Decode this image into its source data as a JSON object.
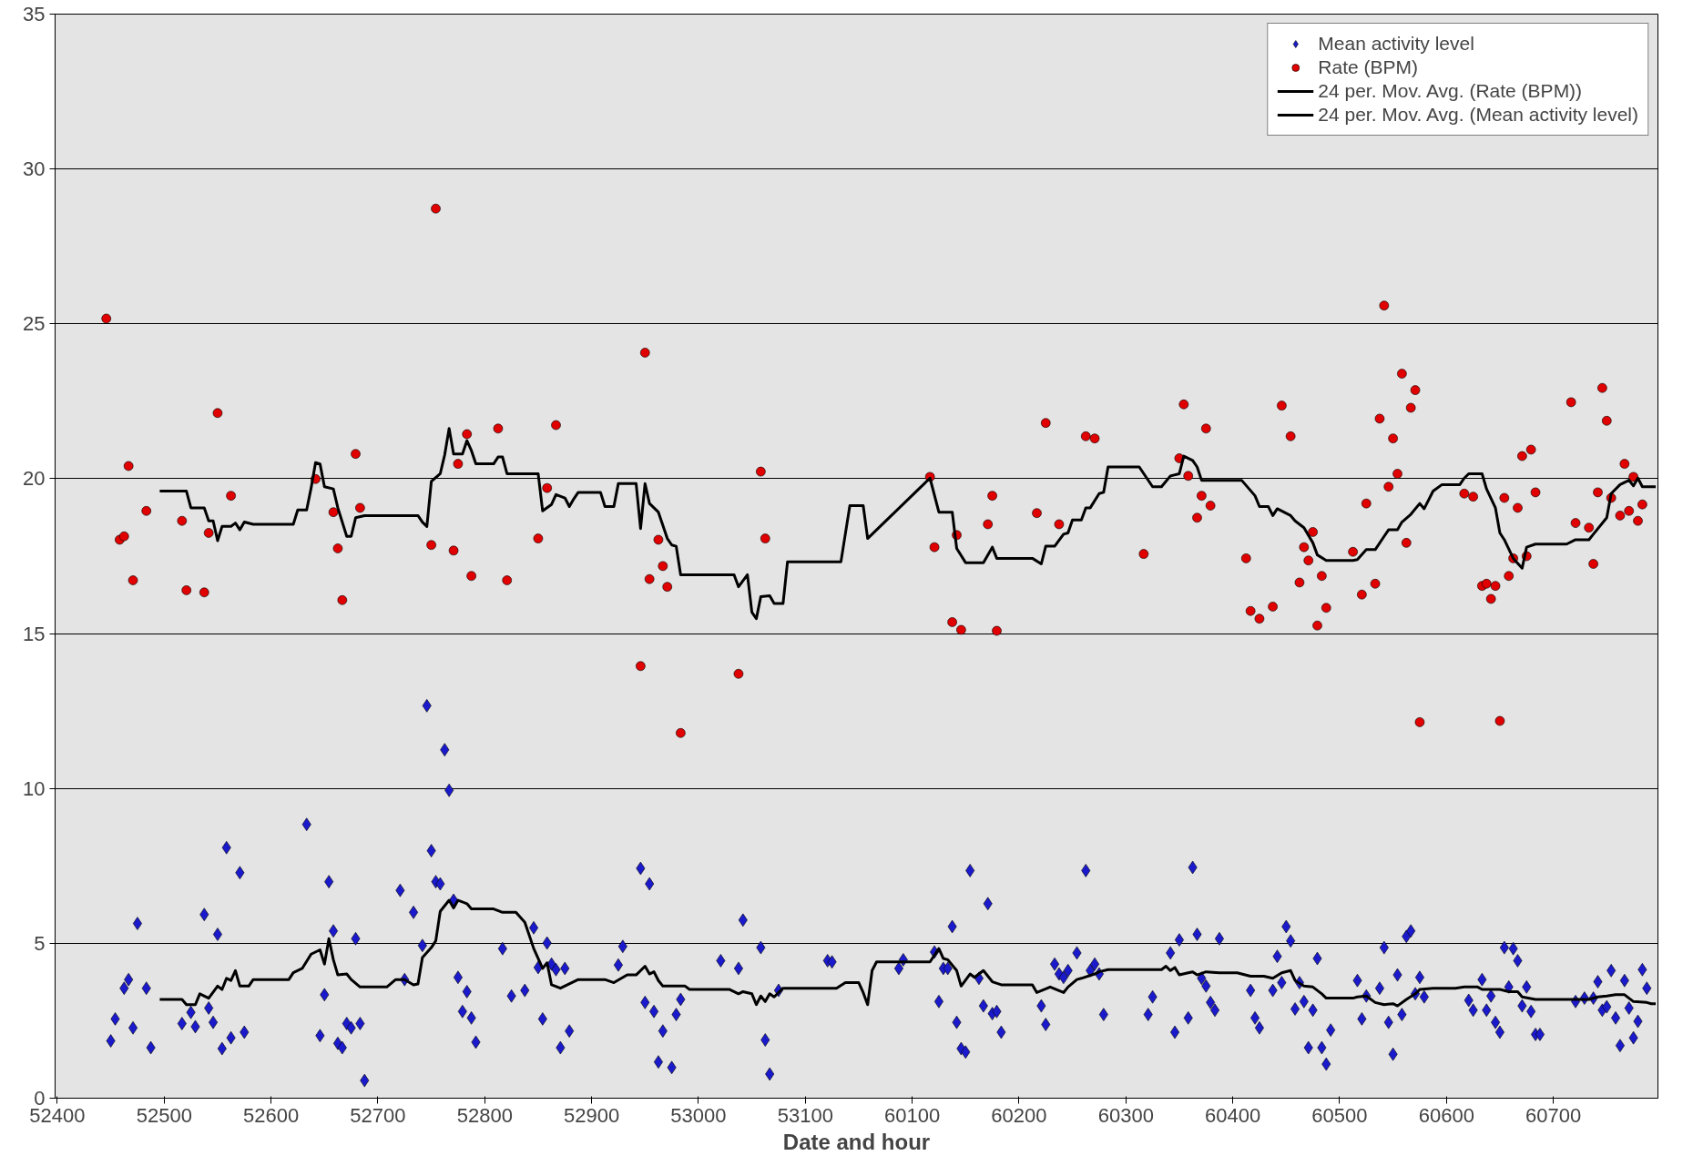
{
  "chart_data": {
    "type": "scatter",
    "xlabel": "Date and hour",
    "ylim": [
      0,
      35
    ],
    "yticks": [
      0,
      5,
      10,
      15,
      20,
      25,
      30,
      35
    ],
    "grid": "y",
    "legend": "top right",
    "categories": [
      "52400",
      null,
      null,
      null,
      null,
      null,
      null,
      null,
      null,
      null,
      null,
      null,
      null,
      null,
      null,
      null,
      null,
      null,
      null,
      null,
      null,
      null,
      null,
      null,
      "52500",
      null,
      null,
      null,
      null,
      null,
      null,
      null,
      null,
      null,
      null,
      null,
      null,
      null,
      null,
      null,
      null,
      null,
      null,
      null,
      null,
      null,
      null,
      null,
      "52600",
      null,
      null,
      null,
      null,
      null,
      null,
      null,
      null,
      null,
      null,
      null,
      null,
      null,
      null,
      null,
      null,
      null,
      null,
      null,
      null,
      null,
      null,
      null,
      "52700",
      null,
      null,
      null,
      null,
      null,
      null,
      null,
      null,
      null,
      null,
      null,
      null,
      null,
      null,
      null,
      null,
      null,
      null,
      null,
      null,
      null,
      null,
      null,
      "52800",
      null,
      null,
      null,
      null,
      null,
      null,
      null,
      null,
      null,
      null,
      null,
      null,
      null,
      null,
      null,
      null,
      null,
      null,
      null,
      null,
      null,
      null,
      null,
      "52900",
      null,
      null,
      null,
      null,
      null,
      null,
      null,
      null,
      null,
      null,
      null,
      null,
      null,
      null,
      null,
      null,
      null,
      null,
      null,
      null,
      null,
      null,
      null,
      "53000",
      null,
      null,
      null,
      null,
      null,
      null,
      null,
      null,
      null,
      null,
      null,
      null,
      null,
      null,
      null,
      null,
      null,
      null,
      null,
      null,
      null,
      null,
      null,
      "53100",
      null,
      null,
      null,
      null,
      null,
      null,
      null,
      null,
      null,
      null,
      null,
      null,
      null,
      null,
      null,
      null,
      null,
      null,
      null,
      null,
      null,
      null,
      null,
      "60100",
      null,
      null,
      null,
      null,
      null,
      null,
      null,
      null,
      null,
      null,
      null,
      null,
      null,
      null,
      null,
      null,
      null,
      null,
      null,
      null,
      null,
      null,
      null,
      "60200",
      null,
      null,
      null,
      null,
      null,
      null,
      null,
      null,
      null,
      null,
      null,
      null,
      null,
      null,
      null,
      null,
      null,
      null,
      null,
      null,
      null,
      null,
      null,
      "60300",
      null,
      null,
      null,
      null,
      null,
      null,
      null,
      null,
      null,
      null,
      null,
      null,
      null,
      null,
      null,
      null,
      null,
      null,
      null,
      null,
      null,
      null,
      null,
      "60400",
      null,
      null,
      null,
      null,
      null,
      null,
      null,
      null,
      null,
      null,
      null,
      null,
      null,
      null,
      null,
      null,
      null,
      null,
      null,
      null,
      null,
      null,
      null,
      "60500",
      null,
      null,
      null,
      null,
      null,
      null,
      null,
      null,
      null,
      null,
      null,
      null,
      null,
      null,
      null,
      null,
      null,
      null,
      null,
      null,
      null,
      null,
      null,
      "60600",
      null,
      null,
      null,
      null,
      null,
      null,
      null,
      null,
      null,
      null,
      null,
      null,
      null,
      null,
      null,
      null,
      null,
      null,
      null,
      null,
      null,
      null,
      null,
      "60700",
      null,
      null,
      null,
      null,
      null,
      null,
      null,
      null,
      null,
      null,
      null,
      null,
      null,
      null,
      null,
      null,
      null,
      null,
      null,
      null,
      null,
      null,
      null
    ],
    "series": [
      {
        "name": "Mean activity level",
        "marker": "diamond",
        "color": "#1a1acc",
        "values": [
          null,
          null,
          null,
          null,
          null,
          null,
          null,
          null,
          null,
          null,
          null,
          null,
          1.85,
          2.56,
          null,
          3.55,
          3.83,
          2.27,
          5.64,
          null,
          3.55,
          1.63,
          null,
          null,
          null,
          null,
          null,
          null,
          2.41,
          null,
          2.77,
          2.31,
          null,
          5.93,
          2.91,
          2.45,
          5.29,
          1.6,
          8.09,
          1.95,
          null,
          7.28,
          2.13,
          null,
          null,
          null,
          null,
          null,
          null,
          null,
          null,
          null,
          null,
          null,
          null,
          null,
          8.84,
          null,
          null,
          2.02,
          3.34,
          6.99,
          5.4,
          1.77,
          1.63,
          2.41,
          2.27,
          5.15,
          2.41,
          0.57,
          null,
          null,
          null,
          null,
          null,
          null,
          null,
          6.71,
          3.83,
          null,
          6.0,
          null,
          4.93,
          12.67,
          7.99,
          6.99,
          6.92,
          11.25,
          9.94,
          6.39,
          3.9,
          2.8,
          3.44,
          2.59,
          1.81,
          null,
          null,
          null,
          null,
          null,
          4.83,
          null,
          3.3,
          null,
          null,
          3.48,
          null,
          5.5,
          4.22,
          2.56,
          5.01,
          4.33,
          4.15,
          1.63,
          4.19,
          2.17,
          null,
          null,
          null,
          null,
          null,
          null,
          null,
          null,
          null,
          null,
          4.3,
          4.9,
          null,
          null,
          null,
          7.42,
          3.09,
          6.92,
          2.8,
          1.17,
          2.17,
          null,
          0.99,
          2.7,
          3.19,
          null,
          null,
          null,
          null,
          null,
          null,
          null,
          null,
          4.44,
          null,
          null,
          null,
          4.19,
          5.75,
          null,
          null,
          null,
          4.86,
          1.88,
          0.78,
          null,
          3.48,
          null,
          null,
          null,
          null,
          null,
          null,
          null,
          null,
          null,
          null,
          4.44,
          4.4,
          null,
          null,
          null,
          null,
          null,
          null,
          null,
          null,
          null,
          null,
          null,
          null,
          null,
          null,
          4.19,
          4.47,
          null,
          null,
          null,
          null,
          null,
          null,
          4.72,
          3.12,
          4.19,
          4.19,
          5.54,
          2.45,
          1.6,
          1.49,
          7.35,
          null,
          3.87,
          2.98,
          6.28,
          2.73,
          2.8,
          2.13,
          null,
          null,
          null,
          null,
          null,
          null,
          null,
          null,
          2.98,
          2.38,
          null,
          4.33,
          4.01,
          3.9,
          4.12,
          null,
          4.69,
          null,
          7.35,
          4.12,
          4.33,
          4.01,
          2.7,
          null,
          null,
          null,
          null,
          null,
          null,
          null,
          null,
          null,
          2.7,
          3.27,
          null,
          null,
          null,
          4.69,
          2.13,
          5.11,
          null,
          2.59,
          7.45,
          5.29,
          3.87,
          3.62,
          3.09,
          2.84,
          5.15,
          null,
          null,
          null,
          null,
          null,
          null,
          3.48,
          2.59,
          2.27,
          null,
          null,
          3.48,
          4.58,
          3.73,
          5.54,
          5.08,
          2.88,
          3.73,
          3.12,
          1.63,
          2.84,
          4.51,
          1.63,
          1.1,
          2.2,
          null,
          null,
          null,
          null,
          null,
          3.8,
          2.56,
          3.3,
          null,
          null,
          3.55,
          4.86,
          2.45,
          1.42,
          3.98,
          2.7,
          5.22,
          5.4,
          3.37,
          3.9,
          3.27,
          null,
          null,
          null,
          null,
          null,
          null,
          null,
          null,
          null,
          3.16,
          2.84,
          null,
          3.83,
          2.84,
          3.3,
          2.45,
          2.13,
          4.86,
          3.59,
          4.83,
          4.44,
          2.98,
          3.59,
          2.8,
          2.06,
          2.06,
          null,
          null,
          null,
          null,
          null,
          null,
          null,
          3.12,
          null,
          3.23,
          null,
          3.23,
          3.76,
          2.84,
          2.95,
          4.12,
          2.59,
          1.7,
          3.8,
          2.91,
          1.95,
          2.48,
          4.15,
          3.55,
          null,
          null
        ]
      },
      {
        "name": "Rate (BPM)",
        "marker": "circle",
        "color": "#e00000",
        "values": [
          null,
          null,
          null,
          null,
          null,
          null,
          null,
          null,
          null,
          null,
          null,
          25.17,
          null,
          null,
          18.03,
          18.14,
          20.41,
          16.72,
          null,
          null,
          18.96,
          null,
          null,
          null,
          null,
          null,
          null,
          null,
          18.64,
          16.4,
          null,
          null,
          null,
          16.33,
          18.25,
          null,
          22.12,
          null,
          null,
          19.45,
          null,
          null,
          null,
          null,
          null,
          null,
          null,
          null,
          null,
          null,
          null,
          null,
          null,
          null,
          null,
          null,
          null,
          null,
          19.99,
          null,
          null,
          null,
          18.92,
          17.75,
          16.08,
          null,
          null,
          20.8,
          19.06,
          null,
          null,
          null,
          null,
          null,
          null,
          null,
          null,
          null,
          null,
          null,
          null,
          null,
          null,
          null,
          17.86,
          28.72,
          null,
          null,
          null,
          17.68,
          20.48,
          null,
          21.44,
          16.86,
          null,
          null,
          null,
          null,
          null,
          21.62,
          null,
          16.72,
          null,
          null,
          null,
          null,
          null,
          null,
          18.07,
          null,
          19.7,
          null,
          21.73,
          null,
          null,
          null,
          null,
          null,
          null,
          null,
          null,
          null,
          null,
          null,
          null,
          null,
          null,
          null,
          null,
          null,
          null,
          13.95,
          24.07,
          16.76,
          null,
          18.03,
          17.18,
          16.51,
          null,
          null,
          11.79,
          null,
          null,
          null,
          null,
          null,
          null,
          null,
          null,
          null,
          null,
          null,
          null,
          13.7,
          null,
          null,
          null,
          null,
          20.23,
          18.07,
          null,
          null,
          null,
          null,
          null,
          null,
          null,
          null,
          null,
          null,
          null,
          null,
          null,
          null,
          null,
          null,
          null,
          null,
          null,
          null,
          null,
          null,
          null,
          null,
          null,
          null,
          null,
          null,
          null,
          null,
          null,
          null,
          null,
          null,
          null,
          null,
          20.06,
          17.79,
          null,
          null,
          null,
          15.37,
          18.18,
          15.12,
          null,
          null,
          null,
          null,
          null,
          18.53,
          19.45,
          15.09,
          null,
          null,
          null,
          null,
          null,
          null,
          null,
          null,
          18.89,
          null,
          21.8,
          null,
          null,
          18.53,
          null,
          null,
          null,
          null,
          null,
          21.37,
          null,
          21.3,
          null,
          null,
          null,
          null,
          null,
          null,
          null,
          null,
          null,
          null,
          17.57,
          null,
          null,
          null,
          null,
          null,
          null,
          null,
          20.66,
          22.4,
          20.09,
          null,
          18.74,
          19.45,
          21.62,
          19.13,
          null,
          null,
          null,
          null,
          null,
          null,
          null,
          17.43,
          15.73,
          null,
          15.48,
          null,
          null,
          15.87,
          null,
          22.36,
          null,
          21.37,
          null,
          16.65,
          17.79,
          17.36,
          18.28,
          15.26,
          16.86,
          15.83,
          null,
          null,
          null,
          null,
          null,
          17.64,
          null,
          16.26,
          19.2,
          null,
          16.61,
          21.94,
          25.59,
          19.74,
          21.3,
          20.16,
          23.39,
          17.93,
          22.29,
          22.86,
          12.14,
          null,
          null,
          null,
          null,
          null,
          null,
          null,
          null,
          null,
          19.52,
          null,
          19.42,
          null,
          16.54,
          16.61,
          16.12,
          16.54,
          12.18,
          19.38,
          16.86,
          17.43,
          19.06,
          20.73,
          17.5,
          20.94,
          19.56,
          null,
          null,
          null,
          null,
          null,
          null,
          null,
          22.47,
          18.57,
          null,
          null,
          18.42,
          17.25,
          19.56,
          22.93,
          21.87,
          19.38,
          null,
          18.81,
          20.48,
          18.96,
          20.06,
          18.64,
          19.17,
          null,
          null,
          null
        ]
      },
      {
        "name": "24 per. Mov. Avg. (Rate (BPM))",
        "type": "line",
        "color": "#000000",
        "values": [
          null,
          null,
          null,
          null,
          null,
          null,
          null,
          null,
          null,
          null,
          null,
          null,
          null,
          null,
          null,
          null,
          null,
          null,
          null,
          null,
          null,
          null,
          null,
          19.6,
          null,
          null,
          null,
          null,
          null,
          19.6,
          19.06,
          null,
          null,
          19.06,
          18.64,
          18.64,
          18.0,
          18.46,
          null,
          18.46,
          18.57,
          18.35,
          18.6,
          null,
          18.53,
          null,
          null,
          null,
          null,
          null,
          null,
          null,
          null,
          18.53,
          18.99,
          null,
          18.99,
          19.7,
          20.52,
          20.48,
          19.74,
          null,
          19.67,
          19.06,
          null,
          18.14,
          18.14,
          18.74,
          null,
          18.81,
          null,
          null,
          null,
          null,
          null,
          null,
          null,
          null,
          null,
          null,
          null,
          18.81,
          18.6,
          18.46,
          19.91,
          null,
          20.16,
          20.77,
          21.62,
          20.8,
          null,
          20.8,
          21.23,
          20.91,
          20.48,
          null,
          null,
          null,
          20.48,
          20.7,
          20.7,
          20.16,
          null,
          null,
          null,
          null,
          null,
          null,
          20.16,
          18.96,
          null,
          19.17,
          19.49,
          null,
          19.38,
          19.1,
          19.35,
          19.56,
          null,
          null,
          null,
          null,
          19.56,
          19.1,
          null,
          19.1,
          19.84,
          null,
          null,
          null,
          19.84,
          18.39,
          19.84,
          19.2,
          null,
          18.92,
          null,
          18.07,
          17.86,
          17.82,
          16.9,
          null,
          null,
          null,
          null,
          null,
          null,
          null,
          null,
          null,
          null,
          null,
          16.9,
          16.51,
          null,
          16.9,
          15.69,
          15.48,
          16.19,
          null,
          16.22,
          15.97,
          null,
          15.97,
          17.32,
          null,
          null,
          null,
          null,
          null,
          null,
          null,
          null,
          null,
          null,
          null,
          17.32,
          null,
          19.13,
          null,
          null,
          19.13,
          18.07,
          null,
          null,
          null,
          null,
          null,
          null,
          null,
          null,
          null,
          null,
          null,
          null,
          null,
          20.02,
          null,
          18.92,
          null,
          null,
          18.92,
          17.75,
          null,
          17.29,
          null,
          null,
          null,
          17.29,
          null,
          17.79,
          17.43,
          null,
          null,
          null,
          null,
          null,
          null,
          null,
          17.43,
          null,
          17.25,
          17.82,
          null,
          17.82,
          null,
          18.21,
          18.25,
          18.67,
          null,
          18.67,
          19.06,
          19.06,
          null,
          19.52,
          19.56,
          20.38,
          null,
          null,
          null,
          null,
          null,
          null,
          20.38,
          null,
          null,
          19.74,
          null,
          19.74,
          null,
          20.09,
          null,
          20.16,
          20.73,
          null,
          20.59,
          20.38,
          19.95,
          19.95,
          null,
          null,
          null,
          null,
          null,
          null,
          null,
          19.95,
          null,
          null,
          19.45,
          19.1,
          null,
          19.1,
          18.81,
          19.03,
          null,
          null,
          18.81,
          18.64,
          null,
          18.42,
          null,
          17.93,
          17.54,
          null,
          17.36,
          null,
          null,
          null,
          null,
          null,
          17.36,
          17.39,
          null,
          17.71,
          null,
          17.71,
          null,
          18.14,
          18.35,
          null,
          18.35,
          18.6,
          null,
          18.85,
          null,
          19.2,
          19.03,
          null,
          19.6,
          null,
          19.81,
          null,
          null,
          null,
          19.81,
          20.02,
          20.16,
          null,
          null,
          20.16,
          19.67,
          null,
          19.06,
          18.25,
          18.03,
          null,
          17.43,
          null,
          17.11,
          17.79,
          null,
          17.89,
          null,
          null,
          null,
          null,
          null,
          null,
          17.89,
          null,
          18.03,
          null,
          null,
          18.03,
          18.21,
          null,
          null,
          18.74,
          19.52,
          null,
          19.81,
          null,
          19.95,
          19.77,
          20.02,
          19.74,
          null,
          null,
          19.74
        ]
      },
      {
        "name": "24 per. Mov. Avg. (Mean activity level)",
        "type": "line",
        "color": "#000000",
        "values": [
          null,
          null,
          null,
          null,
          null,
          null,
          null,
          null,
          null,
          null,
          null,
          null,
          null,
          null,
          null,
          null,
          null,
          null,
          null,
          null,
          null,
          null,
          null,
          3.19,
          null,
          null,
          null,
          null,
          3.19,
          3.02,
          null,
          3.02,
          3.37,
          null,
          3.23,
          null,
          3.62,
          3.51,
          3.87,
          3.8,
          4.12,
          3.62,
          null,
          3.62,
          3.83,
          null,
          null,
          null,
          null,
          null,
          null,
          null,
          3.83,
          4.05,
          null,
          4.19,
          null,
          4.65,
          null,
          4.79,
          4.33,
          5.15,
          4.47,
          3.98,
          null,
          4.01,
          3.83,
          null,
          3.59,
          null,
          null,
          null,
          null,
          null,
          3.59,
          null,
          3.83,
          null,
          3.83,
          null,
          3.66,
          3.69,
          4.54,
          null,
          4.86,
          5.08,
          6.03,
          null,
          6.39,
          6.14,
          6.39,
          null,
          6.28,
          6.11,
          null,
          null,
          null,
          null,
          6.11,
          null,
          6.0,
          null,
          null,
          6.0,
          null,
          5.68,
          null,
          4.83,
          null,
          4.19,
          4.37,
          3.66,
          null,
          3.55,
          null,
          3.69,
          null,
          3.83,
          null,
          null,
          null,
          null,
          null,
          3.83,
          null,
          3.73,
          null,
          null,
          3.98,
          null,
          3.98,
          null,
          4.26,
          4.01,
          4.08,
          3.8,
          3.62,
          null,
          null,
          null,
          null,
          3.62,
          3.51,
          null,
          null,
          null,
          null,
          null,
          null,
          null,
          null,
          3.51,
          null,
          3.37,
          3.44,
          null,
          3.37,
          3.02,
          3.3,
          3.12,
          3.37,
          3.27,
          null,
          3.55,
          null,
          null,
          null,
          null,
          null,
          null,
          null,
          null,
          null,
          null,
          null,
          3.55,
          null,
          3.73,
          null,
          null,
          3.73,
          3.41,
          3.02,
          4.12,
          4.4,
          null,
          null,
          null,
          null,
          null,
          null,
          null,
          null,
          null,
          null,
          null,
          4.4,
          null,
          4.83,
          4.51,
          4.47,
          null,
          4.12,
          3.62,
          null,
          4.01,
          3.9,
          null,
          4.12,
          null,
          3.76,
          null,
          3.66,
          null,
          null,
          null,
          null,
          null,
          null,
          3.66,
          3.41,
          null,
          null,
          3.59,
          null,
          null,
          3.41,
          3.59,
          null,
          3.83,
          3.87,
          null,
          null,
          4.01,
          4.08,
          null,
          4.15,
          null,
          null,
          null,
          null,
          null,
          null,
          null,
          null,
          null,
          null,
          null,
          4.15,
          4.26,
          4.12,
          4.22,
          3.98,
          null,
          4.05,
          4.08,
          3.98,
          null,
          4.08,
          null,
          null,
          4.05,
          null,
          null,
          null,
          4.05,
          null,
          null,
          3.94,
          null,
          null,
          3.94,
          null,
          3.87,
          null,
          4.05,
          null,
          4.12,
          3.8,
          null,
          3.62,
          null,
          3.59,
          null,
          3.37,
          3.23,
          null,
          null,
          null,
          null,
          null,
          3.23,
          3.27,
          null,
          3.3,
          null,
          3.09,
          null,
          3.02,
          null,
          3.05,
          2.98,
          null,
          3.19,
          null,
          3.37,
          3.51,
          null,
          null,
          3.55,
          null,
          null,
          null,
          null,
          3.55,
          null,
          3.59,
          null,
          null,
          3.59,
          3.51,
          null,
          null,
          null,
          3.51,
          null,
          3.44,
          null,
          3.44,
          3.27,
          null,
          null,
          3.19,
          null,
          null,
          null,
          null,
          null,
          null,
          null,
          null,
          null,
          null,
          null,
          3.19,
          null,
          3.27,
          null,
          3.3,
          null,
          3.34,
          null,
          3.34,
          null,
          3.12,
          null,
          null,
          3.09,
          3.05,
          3.05
        ]
      }
    ]
  }
}
